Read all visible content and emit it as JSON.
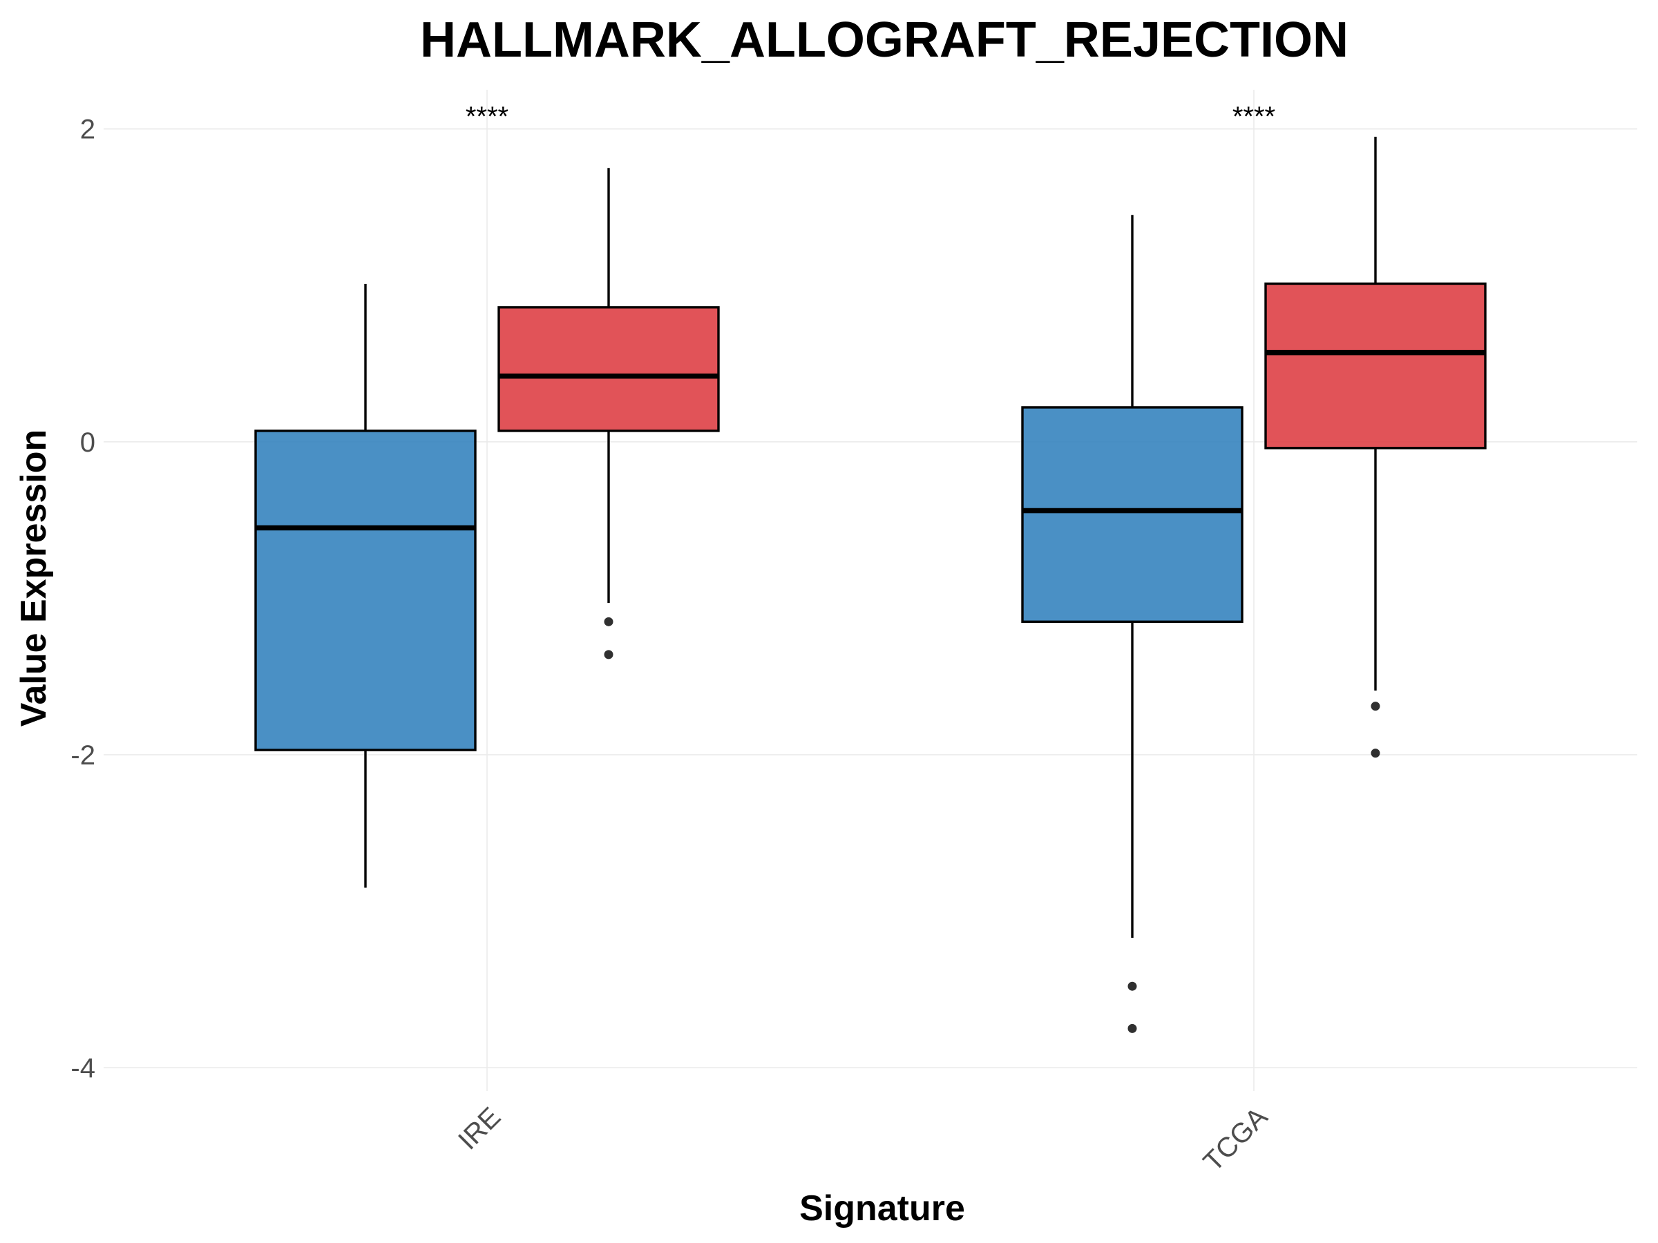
{
  "chart_data": {
    "type": "box",
    "title": "HALLMARK_ALLOGRAFT_REJECTION",
    "xlabel": "Signature",
    "ylabel": "Value Expression",
    "categories": [
      "IRE",
      "TCGA"
    ],
    "ylim": [
      -4.15,
      2.25
    ],
    "yticks": [
      2,
      0,
      -2,
      -4
    ],
    "ytick_labels": [
      "2",
      "0",
      "-2",
      "-4"
    ],
    "grid": true,
    "legend": "none",
    "significance": [
      "****",
      "****"
    ],
    "series": [
      {
        "color": "#2f7fbc",
        "boxes": [
          {
            "whisker_low": -2.85,
            "q1": -1.97,
            "median": -0.55,
            "q3": 0.07,
            "whisker_high": 1.01,
            "outliers": []
          },
          {
            "whisker_low": -3.17,
            "q1": -1.15,
            "median": -0.44,
            "q3": 0.22,
            "whisker_high": 1.45,
            "outliers": [
              -3.48,
              -3.75
            ]
          }
        ]
      },
      {
        "color": "#dc3a3f",
        "boxes": [
          {
            "whisker_low": -1.03,
            "q1": 0.07,
            "median": 0.42,
            "q3": 0.86,
            "whisker_high": 1.75,
            "outliers": [
              -1.15,
              -1.36
            ]
          },
          {
            "whisker_low": -1.59,
            "q1": -0.04,
            "median": 0.57,
            "q3": 1.01,
            "whisker_high": 1.95,
            "outliers": [
              -1.69,
              -1.99
            ]
          }
        ]
      }
    ]
  }
}
